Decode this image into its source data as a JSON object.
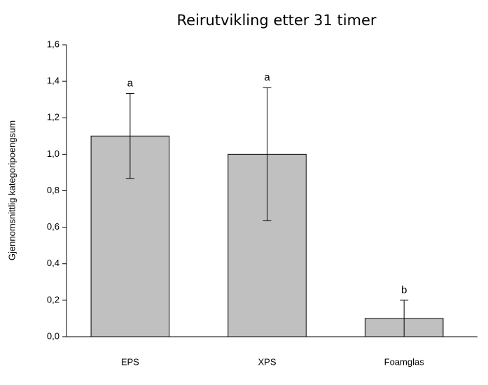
{
  "chart_data": {
    "type": "bar",
    "title": "Reirutvikling etter 31 timer",
    "y_label": "Gjennomsnittlig kategoripoengsum",
    "categories": [
      "EPS",
      "XPS",
      "Foamglas"
    ],
    "values": [
      1.1,
      1.0,
      0.1
    ],
    "errors": [
      0.233,
      0.365,
      0.1
    ],
    "annotations": [
      "a",
      "a",
      "b"
    ],
    "color": "#c0c0c0",
    "ylim": [
      0,
      1.6
    ],
    "yticks": [
      {
        "value": 0,
        "label": "0,0"
      },
      {
        "value": 0.2,
        "label": "0,2"
      },
      {
        "value": 0.4,
        "label": "0,4"
      },
      {
        "value": 0.6,
        "label": "0,6"
      },
      {
        "value": 0.8,
        "label": "0,8"
      },
      {
        "value": 1.0,
        "label": "1,0"
      },
      {
        "value": 1.2,
        "label": "1,2"
      },
      {
        "value": 1.4,
        "label": "1,4"
      },
      {
        "value": 1.6,
        "label": "1,6"
      }
    ]
  }
}
